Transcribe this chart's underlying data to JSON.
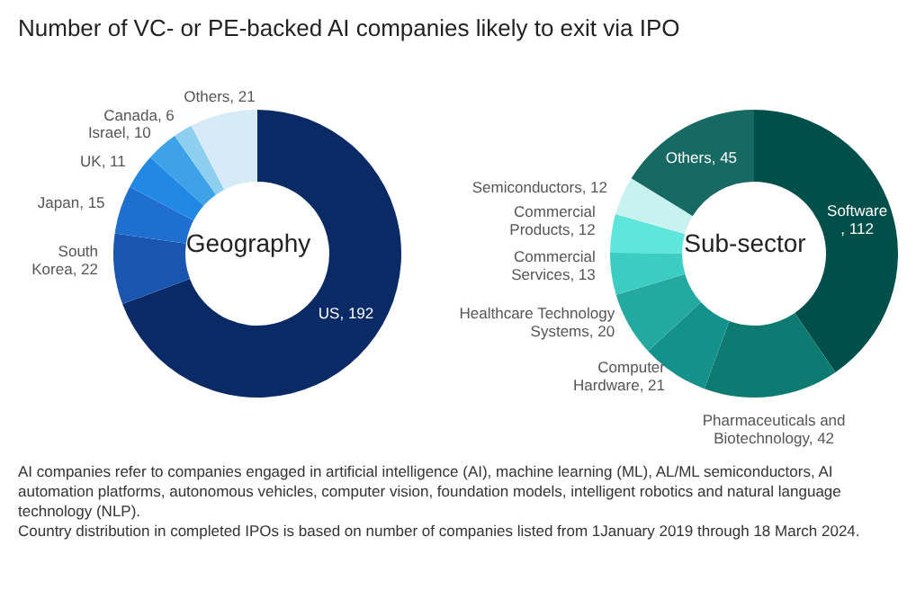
{
  "chart_data": [
    {
      "type": "donut",
      "title": "Number of VC- or PE-backed AI companies likely to exit via IPO",
      "subtitle": "Geography",
      "categories": [
        "US",
        "South Korea",
        "Japan",
        "UK",
        "Israel",
        "Canada",
        "Others"
      ],
      "values": [
        192,
        22,
        15,
        11,
        10,
        6,
        21
      ],
      "colors": [
        "#0a2a66",
        "#1a56b0",
        "#1f6fd0",
        "#2188e6",
        "#3ea2e8",
        "#8ecff0",
        "#d6eaf8"
      ],
      "value_labels": [
        ", 192",
        ", 22",
        ", 15",
        ", 11",
        ", 10",
        ", 6",
        ", 21"
      ],
      "legend": false
    },
    {
      "type": "donut",
      "subtitle": "Sub-sector",
      "categories": [
        "Software",
        "Pharmaceuticals and Biotechnology",
        "Computer Hardware",
        "Healthcare Technology Systems",
        "Commercial Services",
        "Commercial Products",
        "Semiconductors",
        "Others"
      ],
      "values": [
        112,
        42,
        21,
        20,
        13,
        12,
        12,
        45
      ],
      "colors": [
        "#004f4a",
        "#0e7a72",
        "#13918a",
        "#23a9a0",
        "#3ccdc2",
        "#5ee6dc",
        "#c8f2ef",
        "#176964"
      ],
      "value_labels": [
        ", 112",
        ", 42",
        ", 21",
        ", 20",
        ", 13",
        ", 12",
        ", 12",
        ", 45"
      ],
      "legend": false,
      "annotations": [
        "AI companies refer to companies engaged in artificial intelligence (AI), machine learning (ML), AL/ML semiconductors, AI automation platforms, autonomous vehicles, computer vision, foundation models, intelligent robotics and natural language technology (NLP).",
        "Country distribution in completed IPOs is based on number of companies listed from 1January 2019 through 18 March 2024."
      ]
    }
  ]
}
